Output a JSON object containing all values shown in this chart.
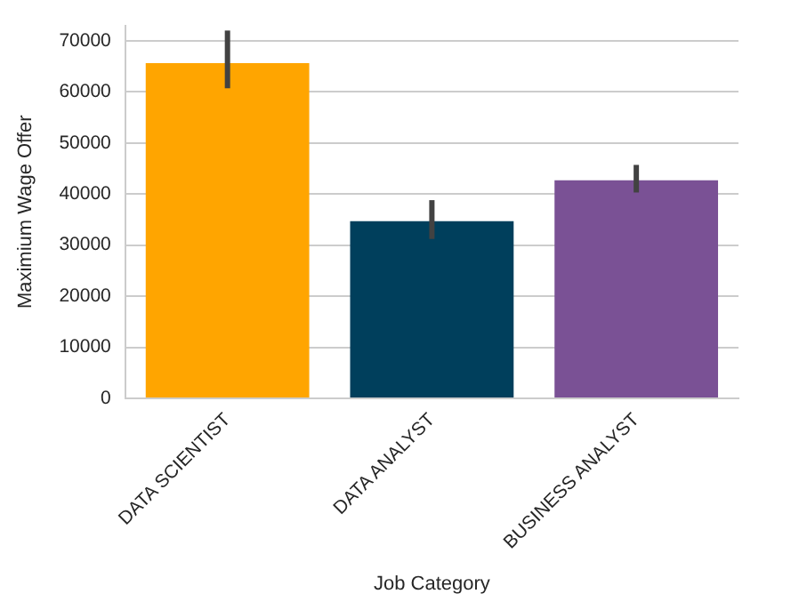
{
  "chart_data": {
    "type": "bar",
    "xlabel": "Job Category",
    "ylabel": "Maximium Wage Offer",
    "categories": [
      "DATA SCIENTIST",
      "DATA ANALYST",
      "BUSINESS ANALYST"
    ],
    "values": [
      65600,
      34700,
      42700
    ],
    "colors": [
      "#ffa500",
      "#003f5c",
      "#7a5195"
    ],
    "errors": [
      [
        60700,
        72000
      ],
      [
        31200,
        38800
      ],
      [
        40300,
        45700
      ]
    ],
    "ylim": [
      0,
      73000
    ],
    "yticks": [
      0,
      10000,
      20000,
      30000,
      40000,
      50000,
      60000,
      70000
    ],
    "grid": "y",
    "legend": false
  }
}
